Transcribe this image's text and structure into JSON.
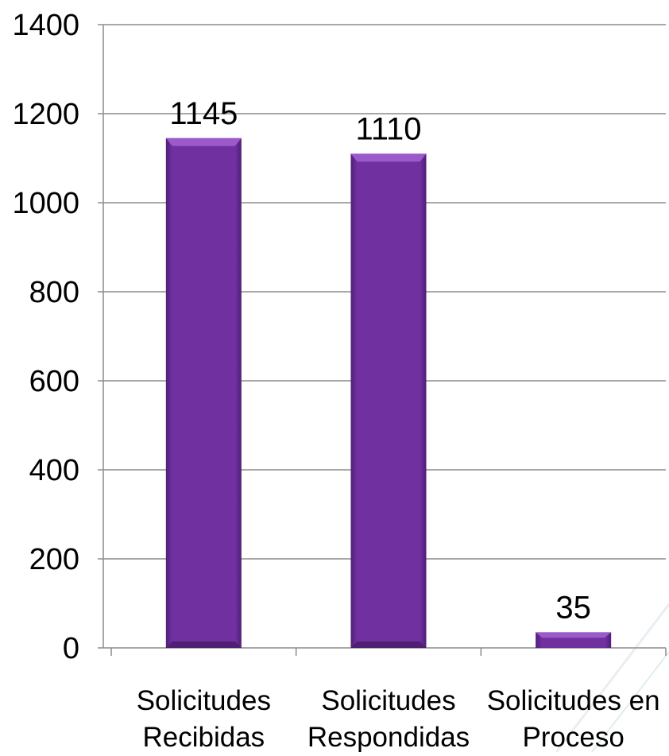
{
  "chart_data": {
    "type": "bar",
    "categories": [
      [
        "Solicitudes",
        "Recibidas"
      ],
      [
        "Solicitudes",
        "Respondidas"
      ],
      [
        "Solicitudes en",
        "Proceso"
      ]
    ],
    "values": [
      1145,
      1110,
      35
    ],
    "data_labels": [
      "1145",
      "1110",
      "35"
    ],
    "ylim": [
      0,
      1400
    ],
    "yticks": [
      0,
      200,
      400,
      600,
      800,
      1000,
      1200,
      1400
    ],
    "ytick_labels": [
      "0",
      "200",
      "400",
      "600",
      "800",
      "1000",
      "1200",
      "1400"
    ],
    "grid": true,
    "legend": "none",
    "title": "",
    "xlabel": "",
    "ylabel": ""
  },
  "colors": {
    "bar": "#7030a0",
    "bar_highlight": "#9b59c9",
    "bar_shadow": "#4e1f74",
    "grid": "#8c8c8c",
    "axis": "#8c8c8c",
    "text": "#000000"
  }
}
